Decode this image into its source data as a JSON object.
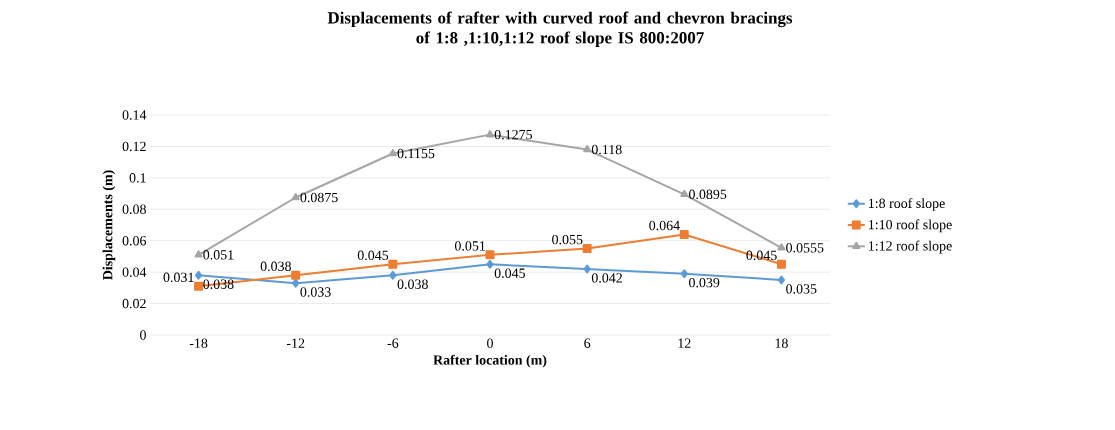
{
  "chart_data": {
    "type": "line",
    "title": "Displacements of rafter with curved roof and chevron bracings\nof 1:8 ,1:10,1:12 roof slope IS 800:2007",
    "xlabel": "Rafter location (m)",
    "ylabel": "Displacements (m)",
    "categories": [
      "-18",
      "-12",
      "-6",
      "0",
      "6",
      "12",
      "18"
    ],
    "series": [
      {
        "name": "1:8 roof slope",
        "color": "#5b9bd5",
        "marker": "diamond",
        "values": [
          0.038,
          0.033,
          0.038,
          0.045,
          0.042,
          0.039,
          0.035
        ]
      },
      {
        "name": "1:10 roof slope",
        "color": "#ed7d31",
        "marker": "square",
        "values": [
          0.031,
          0.038,
          0.045,
          0.051,
          0.055,
          0.064,
          0.045
        ]
      },
      {
        "name": "1:12 roof slope",
        "color": "#a5a5a5",
        "marker": "triangle",
        "values": [
          0.051,
          0.0875,
          0.1155,
          0.1275,
          0.118,
          0.0895,
          0.0555
        ]
      }
    ],
    "ylim": [
      0,
      0.14
    ],
    "yticks": [
      0,
      0.02,
      0.04,
      0.06,
      0.08,
      0.1,
      0.12,
      0.14
    ],
    "grid": "y",
    "legend": "right",
    "data_labels": true
  }
}
